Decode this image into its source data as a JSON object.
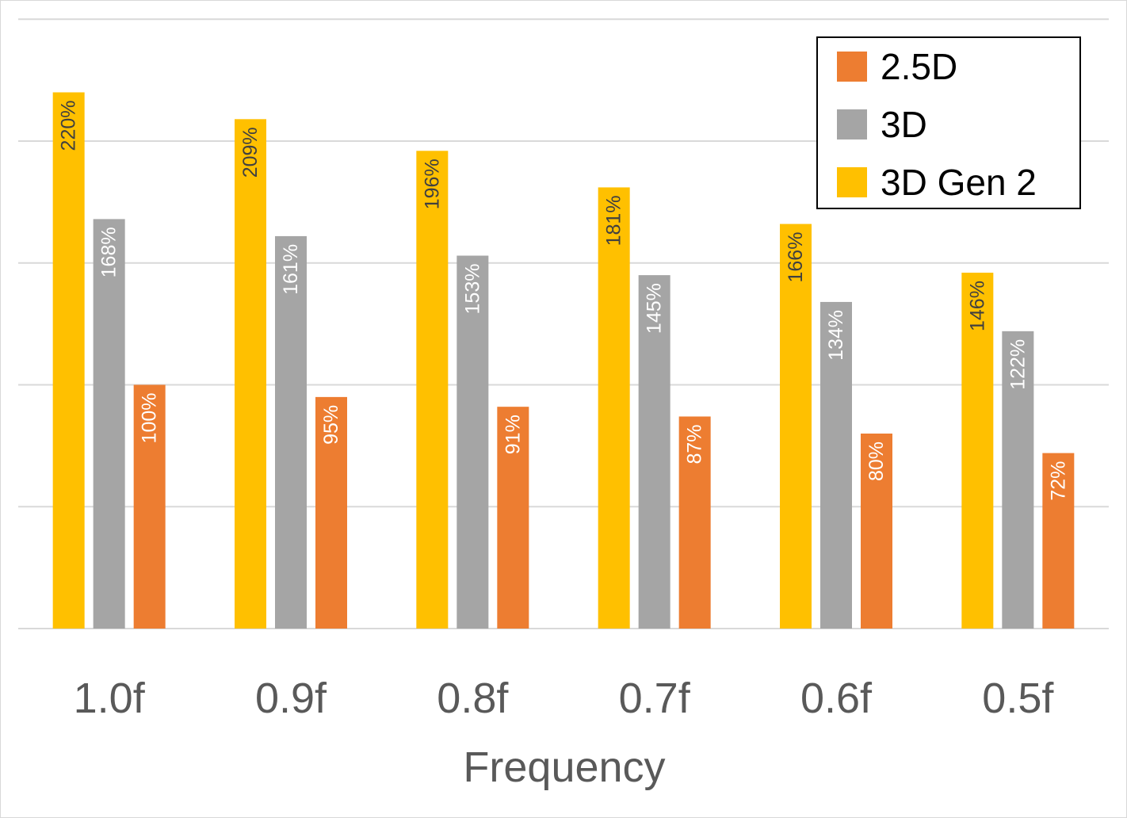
{
  "chart_data": {
    "type": "bar",
    "title": "",
    "xlabel": "Frequency",
    "ylabel": "",
    "ylim": [
      0,
      260
    ],
    "grid": true,
    "legend_position": "top-right",
    "categories": [
      "1.0f",
      "0.9f",
      "0.8f",
      "0.7f",
      "0.6f",
      "0.5f"
    ],
    "series": [
      {
        "name": "3D Gen 2",
        "color": "#FFC000",
        "label_color": "#404040",
        "values": [
          220,
          209,
          196,
          181,
          166,
          146
        ],
        "labels": [
          "220%",
          "209%",
          "196%",
          "181%",
          "166%",
          "146%"
        ]
      },
      {
        "name": "3D",
        "color": "#A5A5A5",
        "label_color": "#FFFFFF",
        "values": [
          168,
          161,
          153,
          145,
          134,
          122
        ],
        "labels": [
          "168%",
          "161%",
          "153%",
          "145%",
          "134%",
          "122%"
        ]
      },
      {
        "name": "2.5D",
        "color": "#ED7D31",
        "label_color": "#FFFFFF",
        "values": [
          100,
          95,
          91,
          87,
          80,
          72
        ],
        "labels": [
          "100%",
          "95%",
          "91%",
          "87%",
          "80%",
          "72%"
        ]
      }
    ],
    "legend_order": [
      "2.5D",
      "3D",
      "3D Gen 2"
    ]
  }
}
